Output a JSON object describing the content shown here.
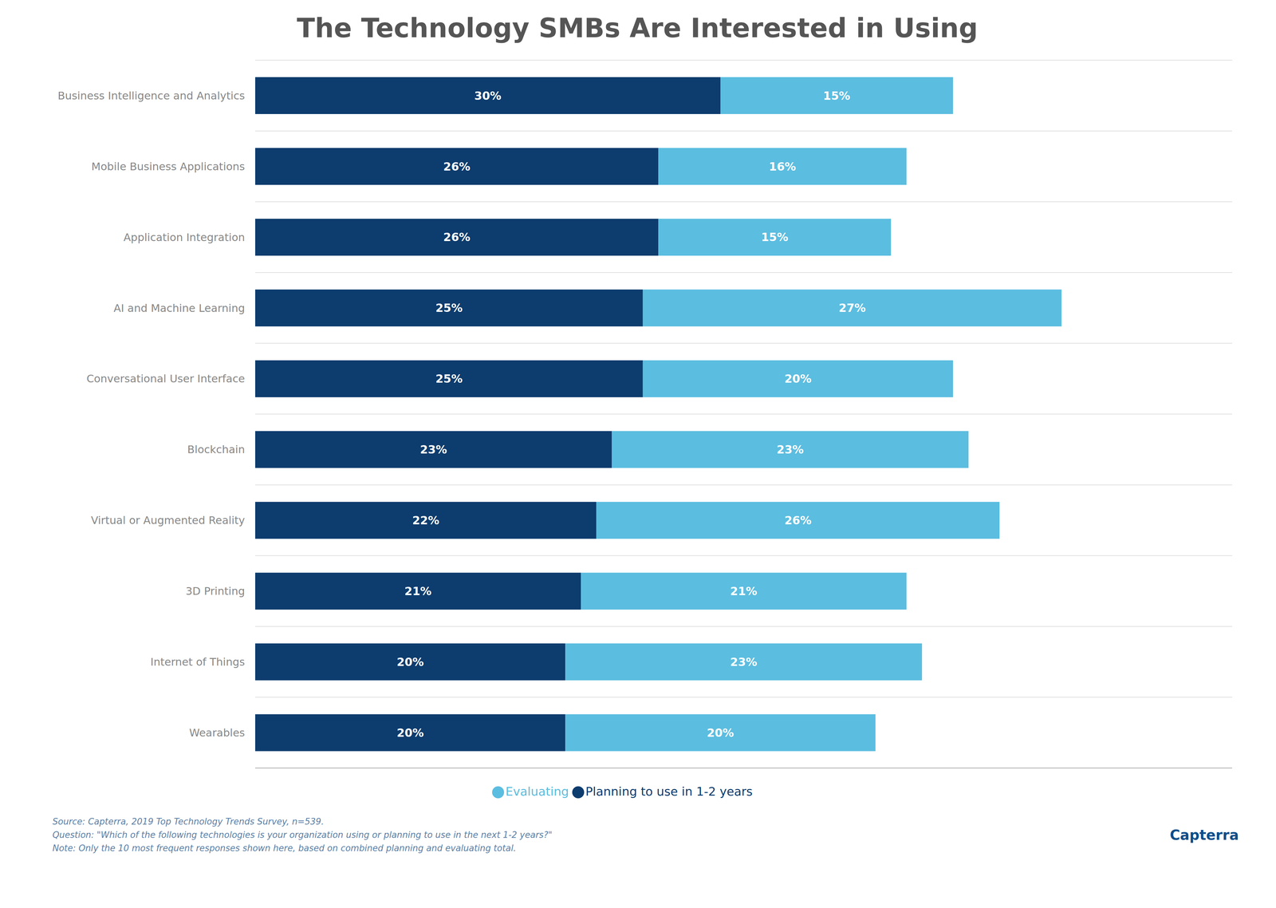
{
  "chart_data": {
    "type": "bar",
    "title": "The Technology SMBs Are Interested in Using",
    "orientation": "horizontal",
    "stacked": true,
    "data_labels": true,
    "grid": true,
    "legend": "bottom",
    "tick_labels": "y",
    "xlim": [
      0,
      63
    ],
    "categories": [
      "Business Intelligence and Analytics",
      "Mobile Business Applications",
      "Application Integration",
      "AI and Machine Learning",
      "Conversational User Interface",
      "Blockchain",
      "Virtual or Augmented Reality",
      "3D Printing",
      "Internet of Things",
      "Wearables"
    ],
    "series": [
      {
        "name": "Planning to use in 1-2 years",
        "color": "#0d3c6e",
        "values": [
          30,
          26,
          26,
          25,
          25,
          23,
          22,
          21,
          20,
          20
        ],
        "value_labels": [
          "30%",
          "26%",
          "26%",
          "25%",
          "25%",
          "23%",
          "22%",
          "21%",
          "20%",
          "20%"
        ]
      },
      {
        "name": "Evaluating",
        "color": "#5bbde0",
        "values": [
          15,
          16,
          15,
          27,
          20,
          23,
          26,
          21,
          23,
          20
        ],
        "value_labels": [
          "15%",
          "16%",
          "15%",
          "27%",
          "20%",
          "23%",
          "26%",
          "21%",
          "23%",
          "20%"
        ]
      }
    ],
    "annotations": [
      "Source: Capterra, 2019 Top Technology Trends Survey, n=539.",
      "Question: \"Which of the following technologies is your organization using or planning to use in the next 1-2 years?\"",
      "Note: Only the 10 most frequent responses shown here, based on combined planning and evaluating total.",
      "Capterra"
    ]
  }
}
